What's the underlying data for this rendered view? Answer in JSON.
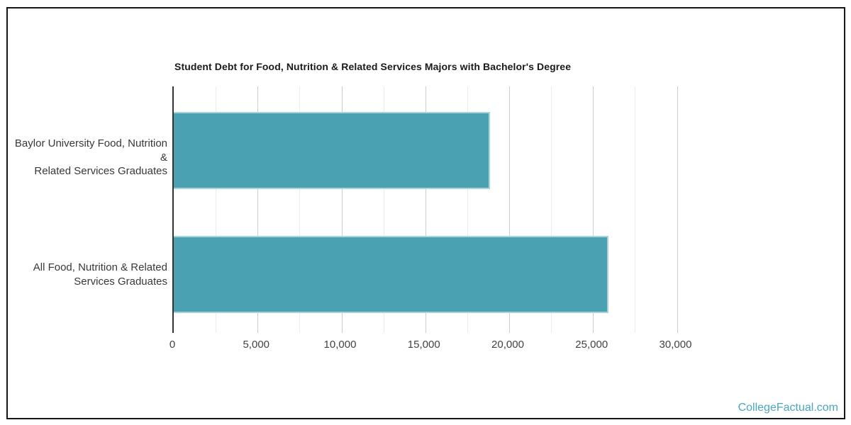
{
  "chart_data": {
    "type": "bar",
    "orientation": "horizontal",
    "title": "Student Debt for Food, Nutrition & Related Services Majors with Bachelor's Degree",
    "categories": [
      {
        "label": "Baylor University Food, Nutrition & Related Services Graduates",
        "line1": "Baylor University Food, Nutrition &",
        "line2": "Related Services Graduates"
      },
      {
        "label": "All Food, Nutrition & Related Services Graduates",
        "line1": "All Food, Nutrition & Related",
        "line2": "Services Graduates"
      }
    ],
    "values": [
      18850,
      25930
    ],
    "xlim": [
      0,
      30000
    ],
    "x_tick_interval": 5000,
    "x_minor_gridline_interval": 2500,
    "x_tick_labels": [
      "0",
      "5,000",
      "10,000",
      "15,000",
      "20,000",
      "25,000",
      "30,000"
    ],
    "ylabel": "",
    "xlabel": "",
    "legend": "none",
    "grid": true,
    "bar_color": "#4AA1B1",
    "bar_border_color": "#A9D4DB",
    "axis_color": "#333333"
  },
  "footer": {
    "watermark": "CollegeFactual.com"
  }
}
